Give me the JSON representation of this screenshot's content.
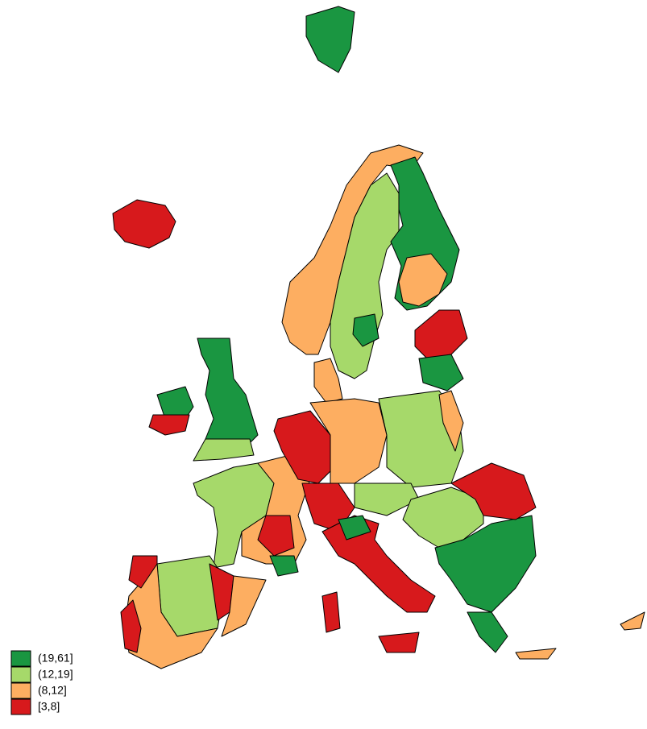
{
  "legend": [
    {
      "label": "(19,61]",
      "color": "#1a9641"
    },
    {
      "label": "(12,19]",
      "color": "#a6d96a"
    },
    {
      "label": "(8,12]",
      "color": "#fdae61"
    },
    {
      "label": "[3,8]",
      "color": "#d7191c"
    }
  ]
}
